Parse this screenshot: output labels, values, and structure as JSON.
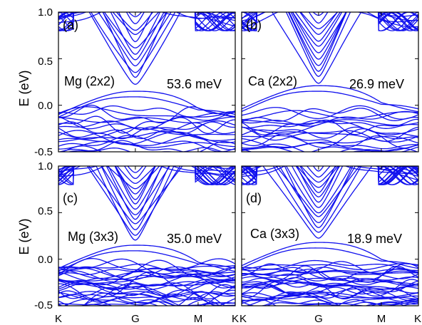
{
  "colors": {
    "bands": "#1010ee",
    "axes": "#000000",
    "background": "#ffffff"
  },
  "chart_data": [
    {
      "type": "line",
      "panel": "(a)",
      "material": "Mg (2x2)",
      "gap_label": "53.6 meV",
      "gap_meV": 53.6,
      "ylabel": "E (eV)",
      "xlabel": "",
      "ylim": [
        -0.5,
        1.0
      ],
      "yticks": [
        "-0.5",
        "0.0",
        "0.5",
        "1.0"
      ],
      "x_ticks": [
        "K",
        "G",
        "M",
        "K"
      ],
      "grid": false,
      "cb_min_eV": 0.22,
      "vb_max_eV": 0.15
    },
    {
      "type": "line",
      "panel": "(b)",
      "material": "Ca (2x2)",
      "gap_label": "26.9 meV",
      "gap_meV": 26.9,
      "ylabel": "",
      "xlabel": "",
      "ylim": [
        -0.5,
        1.0
      ],
      "yticks": [],
      "x_ticks": [
        "K",
        "G",
        "M",
        "K"
      ],
      "grid": false,
      "cb_min_eV": 0.23,
      "vb_max_eV": 0.21
    },
    {
      "type": "line",
      "panel": "(c)",
      "material": "Mg (3x3)",
      "gap_label": "35.0 meV",
      "gap_meV": 35.0,
      "ylabel": "E (eV)",
      "xlabel": "",
      "ylim": [
        -0.5,
        1.0
      ],
      "yticks": [
        "-0.5",
        "0.0",
        "0.5",
        "1.0"
      ],
      "x_ticks": [
        "K",
        "G",
        "M",
        "K"
      ],
      "x_tick_labels_visible": true,
      "grid": false,
      "cb_min_eV": 0.2,
      "vb_max_eV": 0.15
    },
    {
      "type": "line",
      "panel": "(d)",
      "material": "Ca (3x3)",
      "gap_label": "18.9 meV",
      "gap_meV": 18.9,
      "ylabel": "",
      "xlabel": "",
      "ylim": [
        -0.5,
        1.0
      ],
      "yticks": [],
      "x_ticks": [
        "K",
        "G",
        "M",
        "K"
      ],
      "x_tick_labels_visible": true,
      "grid": false,
      "cb_min_eV": 0.22,
      "vb_max_eV": 0.18
    }
  ]
}
